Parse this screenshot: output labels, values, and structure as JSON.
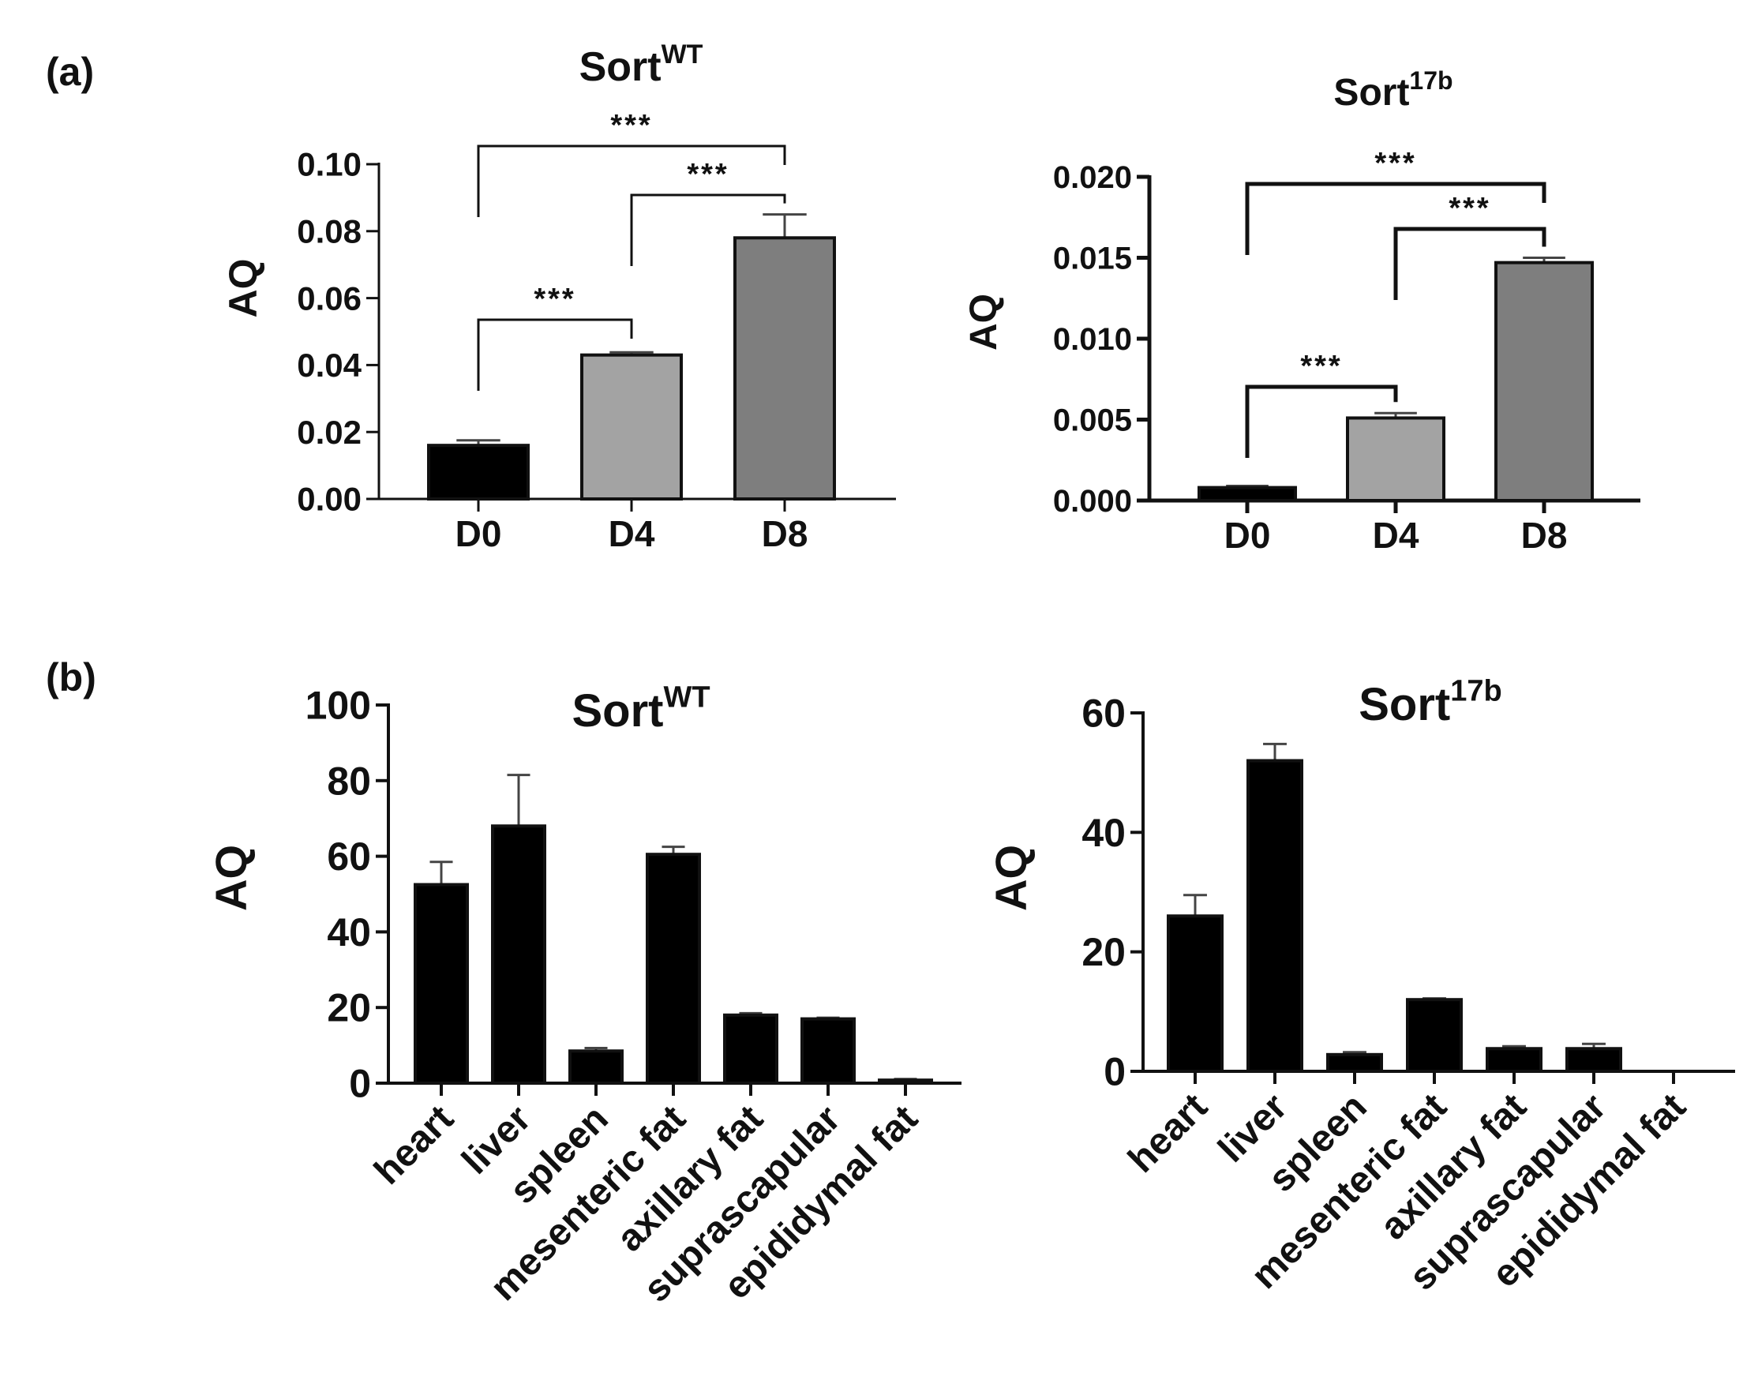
{
  "panels": [
    {
      "label": "(a)"
    },
    {
      "label": "(b)"
    }
  ],
  "chart_data": [
    {
      "type": "bar",
      "panel": "(a)",
      "title": "Sort",
      "title_superscript": "WT",
      "ylabel": "AQ",
      "xlabel": "",
      "categories": [
        "D0",
        "D4",
        "D8"
      ],
      "values": [
        0.016,
        0.043,
        0.078
      ],
      "errors": [
        0.0015,
        0.0008,
        0.007
      ],
      "bar_colors": [
        "#000000",
        "#a3a3a3",
        "#7e7e7e"
      ],
      "ylim": [
        0,
        0.1
      ],
      "yticks": [
        "0.00",
        "0.02",
        "0.04",
        "0.06",
        "0.08",
        "0.10"
      ],
      "significance": [
        {
          "from": "D0",
          "to": "D4",
          "label": "***"
        },
        {
          "from": "D4",
          "to": "D8",
          "label": "***"
        },
        {
          "from": "D0",
          "to": "D8",
          "label": "***"
        }
      ]
    },
    {
      "type": "bar",
      "panel": "(a)",
      "title": "Sort",
      "title_superscript": "17b",
      "ylabel": "AQ",
      "xlabel": "",
      "categories": [
        "D0",
        "D4",
        "D8"
      ],
      "values": [
        0.0008,
        0.0051,
        0.0147
      ],
      "errors": [
        0.0001,
        0.0003,
        0.0003
      ],
      "bar_colors": [
        "#000000",
        "#a3a3a3",
        "#7e7e7e"
      ],
      "ylim": [
        0,
        0.02
      ],
      "yticks": [
        "0.000",
        "0.005",
        "0.010",
        "0.015",
        "0.020"
      ],
      "significance": [
        {
          "from": "D0",
          "to": "D4",
          "label": "***"
        },
        {
          "from": "D4",
          "to": "D8",
          "label": "***"
        },
        {
          "from": "D0",
          "to": "D8",
          "label": "***"
        }
      ]
    },
    {
      "type": "bar",
      "panel": "(b)",
      "title": "Sort",
      "title_superscript": "WT",
      "ylabel": "AQ",
      "xlabel": "",
      "categories": [
        "heart",
        "liver",
        "spleen",
        "mesenteric fat",
        "axillary fat",
        "suprascapular",
        "epididymal fat"
      ],
      "values": [
        52.5,
        68,
        8.5,
        60.5,
        18,
        17,
        0.8
      ],
      "errors": [
        6,
        13.5,
        0.8,
        2,
        0.5,
        0.3,
        0.3
      ],
      "bar_colors": [
        "#000000"
      ],
      "ylim": [
        0,
        100
      ],
      "yticks": [
        "0",
        "20",
        "40",
        "60",
        "80",
        "100"
      ],
      "significance": []
    },
    {
      "type": "bar",
      "panel": "(b)",
      "title": "Sort",
      "title_superscript": "17b",
      "ylabel": "AQ",
      "xlabel": "",
      "categories": [
        "heart",
        "liver",
        "spleen",
        "mesenteric fat",
        "axillary fat",
        "suprascapular",
        "epididymal fat"
      ],
      "values": [
        26,
        52,
        2.8,
        12,
        3.8,
        3.8,
        0
      ],
      "errors": [
        3.5,
        2.8,
        0.4,
        0.2,
        0.4,
        0.8,
        0
      ],
      "bar_colors": [
        "#000000"
      ],
      "ylim": [
        0,
        60
      ],
      "yticks": [
        "0",
        "20",
        "40",
        "60"
      ],
      "significance": []
    }
  ]
}
